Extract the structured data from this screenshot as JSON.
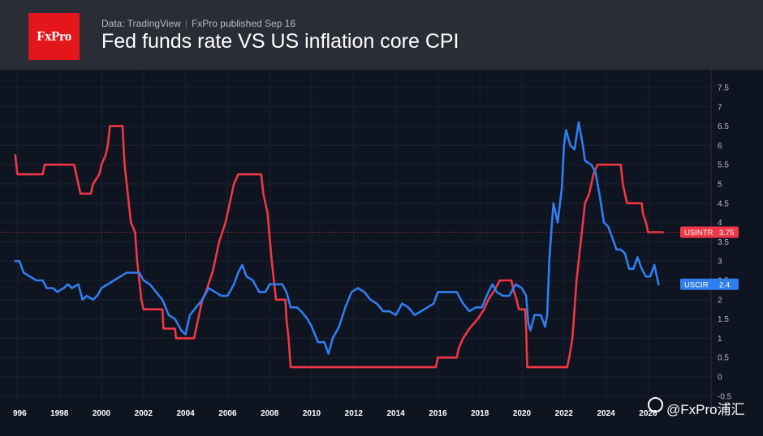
{
  "header": {
    "logo_text": "FxPro",
    "meta_source": "Data: TradingView",
    "meta_publisher": "FxPro published Sep 16",
    "title": "Fed funds rate VS US inflation core CPI"
  },
  "watermark": "@FxPro浦汇",
  "chart_data": {
    "type": "line",
    "title": "Fed funds rate VS US inflation core CPI",
    "x_ticks": [
      "996",
      "1998",
      "2000",
      "2002",
      "2004",
      "2006",
      "2008",
      "2010",
      "2012",
      "2014",
      "2016",
      "2018",
      "2020",
      "2022",
      "2024",
      "2026"
    ],
    "y_ticks": [
      "-0.5",
      "0",
      "0.5",
      "1",
      "1.5",
      "2",
      "2.5",
      "3",
      "3.5",
      "4",
      "4.5",
      "5",
      "5.5",
      "6",
      "6.5",
      "7",
      "7.5"
    ],
    "xlim": [
      1995.6,
      2026.3
    ],
    "ylim": [
      -0.75,
      7.8
    ],
    "grid": true,
    "series": [
      {
        "name": "USINTR",
        "color": "#f23645",
        "last_value": "3.75",
        "points": [
          [
            1995.9,
            5.75
          ],
          [
            1996.0,
            5.25
          ],
          [
            1997.2,
            5.25
          ],
          [
            1997.3,
            5.5
          ],
          [
            1998.7,
            5.5
          ],
          [
            1998.8,
            5.25
          ],
          [
            1998.9,
            5.0
          ],
          [
            1999.0,
            4.75
          ],
          [
            1999.5,
            4.75
          ],
          [
            1999.6,
            5.0
          ],
          [
            1999.9,
            5.25
          ],
          [
            2000.0,
            5.5
          ],
          [
            2000.2,
            5.75
          ],
          [
            2000.3,
            6.0
          ],
          [
            2000.4,
            6.5
          ],
          [
            2001.0,
            6.5
          ],
          [
            2001.1,
            5.5
          ],
          [
            2001.2,
            5.0
          ],
          [
            2001.3,
            4.5
          ],
          [
            2001.4,
            4.0
          ],
          [
            2001.6,
            3.75
          ],
          [
            2001.7,
            3.0
          ],
          [
            2001.8,
            2.5
          ],
          [
            2001.9,
            2.0
          ],
          [
            2002.0,
            1.75
          ],
          [
            2002.9,
            1.75
          ],
          [
            2002.95,
            1.25
          ],
          [
            2003.5,
            1.25
          ],
          [
            2003.55,
            1.0
          ],
          [
            2004.4,
            1.0
          ],
          [
            2004.5,
            1.25
          ],
          [
            2004.6,
            1.5
          ],
          [
            2004.8,
            2.0
          ],
          [
            2005.0,
            2.25
          ],
          [
            2005.3,
            2.75
          ],
          [
            2005.6,
            3.5
          ],
          [
            2005.9,
            4.0
          ],
          [
            2006.1,
            4.5
          ],
          [
            2006.3,
            5.0
          ],
          [
            2006.5,
            5.25
          ],
          [
            2007.6,
            5.25
          ],
          [
            2007.7,
            4.75
          ],
          [
            2007.9,
            4.25
          ],
          [
            2008.1,
            3.0
          ],
          [
            2008.3,
            2.0
          ],
          [
            2008.75,
            2.0
          ],
          [
            2008.8,
            1.5
          ],
          [
            2008.9,
            1.0
          ],
          [
            2009.0,
            0.25
          ],
          [
            2015.9,
            0.25
          ],
          [
            2016.0,
            0.5
          ],
          [
            2016.9,
            0.5
          ],
          [
            2017.0,
            0.75
          ],
          [
            2017.2,
            1.0
          ],
          [
            2017.5,
            1.25
          ],
          [
            2017.9,
            1.5
          ],
          [
            2018.2,
            1.75
          ],
          [
            2018.4,
            2.0
          ],
          [
            2018.7,
            2.25
          ],
          [
            2018.95,
            2.5
          ],
          [
            2019.5,
            2.5
          ],
          [
            2019.6,
            2.25
          ],
          [
            2019.75,
            2.0
          ],
          [
            2019.85,
            1.75
          ],
          [
            2020.15,
            1.75
          ],
          [
            2020.2,
            1.25
          ],
          [
            2020.25,
            0.25
          ],
          [
            2022.15,
            0.25
          ],
          [
            2022.25,
            0.5
          ],
          [
            2022.4,
            1.0
          ],
          [
            2022.5,
            1.75
          ],
          [
            2022.6,
            2.5
          ],
          [
            2022.75,
            3.25
          ],
          [
            2022.9,
            4.0
          ],
          [
            2023.0,
            4.5
          ],
          [
            2023.2,
            4.75
          ],
          [
            2023.4,
            5.25
          ],
          [
            2023.6,
            5.5
          ],
          [
            2024.7,
            5.5
          ],
          [
            2024.8,
            5.0
          ],
          [
            2024.9,
            4.75
          ],
          [
            2025.0,
            4.5
          ],
          [
            2025.7,
            4.5
          ],
          [
            2025.75,
            4.25
          ],
          [
            2025.9,
            4.0
          ],
          [
            2026.0,
            3.75
          ],
          [
            2026.7,
            3.75
          ]
        ]
      },
      {
        "name": "USCIR",
        "color": "#2f7ef0",
        "last_value": "2.4",
        "points": [
          [
            1995.9,
            3.0
          ],
          [
            1996.1,
            3.0
          ],
          [
            1996.3,
            2.7
          ],
          [
            1996.6,
            2.6
          ],
          [
            1996.9,
            2.5
          ],
          [
            1997.2,
            2.5
          ],
          [
            1997.4,
            2.3
          ],
          [
            1997.7,
            2.3
          ],
          [
            1997.9,
            2.2
          ],
          [
            1998.2,
            2.3
          ],
          [
            1998.4,
            2.4
          ],
          [
            1998.6,
            2.3
          ],
          [
            1998.9,
            2.4
          ],
          [
            1999.1,
            2.0
          ],
          [
            1999.3,
            2.1
          ],
          [
            1999.6,
            2.0
          ],
          [
            1999.8,
            2.1
          ],
          [
            2000.0,
            2.3
          ],
          [
            2000.3,
            2.4
          ],
          [
            2000.6,
            2.5
          ],
          [
            2000.9,
            2.6
          ],
          [
            2001.2,
            2.7
          ],
          [
            2001.5,
            2.7
          ],
          [
            2001.8,
            2.7
          ],
          [
            2002.0,
            2.5
          ],
          [
            2002.3,
            2.4
          ],
          [
            2002.6,
            2.2
          ],
          [
            2002.9,
            2.0
          ],
          [
            2003.2,
            1.6
          ],
          [
            2003.5,
            1.5
          ],
          [
            2003.8,
            1.2
          ],
          [
            2004.0,
            1.1
          ],
          [
            2004.2,
            1.6
          ],
          [
            2004.5,
            1.8
          ],
          [
            2004.8,
            2.0
          ],
          [
            2005.1,
            2.3
          ],
          [
            2005.4,
            2.2
          ],
          [
            2005.7,
            2.1
          ],
          [
            2006.0,
            2.1
          ],
          [
            2006.3,
            2.4
          ],
          [
            2006.5,
            2.7
          ],
          [
            2006.7,
            2.9
          ],
          [
            2006.9,
            2.6
          ],
          [
            2007.2,
            2.5
          ],
          [
            2007.5,
            2.2
          ],
          [
            2007.8,
            2.2
          ],
          [
            2008.0,
            2.4
          ],
          [
            2008.3,
            2.4
          ],
          [
            2008.6,
            2.4
          ],
          [
            2008.8,
            2.2
          ],
          [
            2009.0,
            1.8
          ],
          [
            2009.3,
            1.8
          ],
          [
            2009.5,
            1.7
          ],
          [
            2009.8,
            1.5
          ],
          [
            2010.0,
            1.3
          ],
          [
            2010.3,
            0.9
          ],
          [
            2010.6,
            0.9
          ],
          [
            2010.8,
            0.6
          ],
          [
            2011.0,
            1.0
          ],
          [
            2011.3,
            1.3
          ],
          [
            2011.6,
            1.8
          ],
          [
            2011.9,
            2.2
          ],
          [
            2012.2,
            2.3
          ],
          [
            2012.5,
            2.2
          ],
          [
            2012.8,
            2.0
          ],
          [
            2013.1,
            1.9
          ],
          [
            2013.4,
            1.7
          ],
          [
            2013.7,
            1.7
          ],
          [
            2014.0,
            1.6
          ],
          [
            2014.3,
            1.9
          ],
          [
            2014.6,
            1.8
          ],
          [
            2014.9,
            1.6
          ],
          [
            2015.2,
            1.7
          ],
          [
            2015.5,
            1.8
          ],
          [
            2015.8,
            1.9
          ],
          [
            2016.0,
            2.2
          ],
          [
            2016.3,
            2.2
          ],
          [
            2016.6,
            2.2
          ],
          [
            2016.9,
            2.2
          ],
          [
            2017.2,
            1.9
          ],
          [
            2017.5,
            1.7
          ],
          [
            2017.8,
            1.8
          ],
          [
            2018.1,
            1.8
          ],
          [
            2018.4,
            2.2
          ],
          [
            2018.6,
            2.4
          ],
          [
            2018.8,
            2.2
          ],
          [
            2019.1,
            2.1
          ],
          [
            2019.4,
            2.1
          ],
          [
            2019.7,
            2.4
          ],
          [
            2020.0,
            2.3
          ],
          [
            2020.2,
            2.1
          ],
          [
            2020.3,
            1.4
          ],
          [
            2020.4,
            1.2
          ],
          [
            2020.6,
            1.6
          ],
          [
            2020.9,
            1.6
          ],
          [
            2021.1,
            1.3
          ],
          [
            2021.2,
            1.6
          ],
          [
            2021.3,
            3.0
          ],
          [
            2021.4,
            3.8
          ],
          [
            2021.5,
            4.5
          ],
          [
            2021.7,
            4.0
          ],
          [
            2021.9,
            4.9
          ],
          [
            2022.0,
            6.0
          ],
          [
            2022.1,
            6.4
          ],
          [
            2022.3,
            6.0
          ],
          [
            2022.5,
            5.9
          ],
          [
            2022.7,
            6.6
          ],
          [
            2022.9,
            6.0
          ],
          [
            2023.0,
            5.6
          ],
          [
            2023.3,
            5.5
          ],
          [
            2023.5,
            5.3
          ],
          [
            2023.7,
            4.7
          ],
          [
            2023.9,
            4.0
          ],
          [
            2024.1,
            3.9
          ],
          [
            2024.3,
            3.6
          ],
          [
            2024.5,
            3.3
          ],
          [
            2024.7,
            3.3
          ],
          [
            2024.9,
            3.2
          ],
          [
            2025.1,
            2.8
          ],
          [
            2025.3,
            2.8
          ],
          [
            2025.5,
            3.1
          ],
          [
            2025.7,
            2.8
          ],
          [
            2025.9,
            2.6
          ],
          [
            2026.1,
            2.6
          ],
          [
            2026.3,
            2.9
          ],
          [
            2026.5,
            2.4
          ]
        ]
      }
    ]
  }
}
